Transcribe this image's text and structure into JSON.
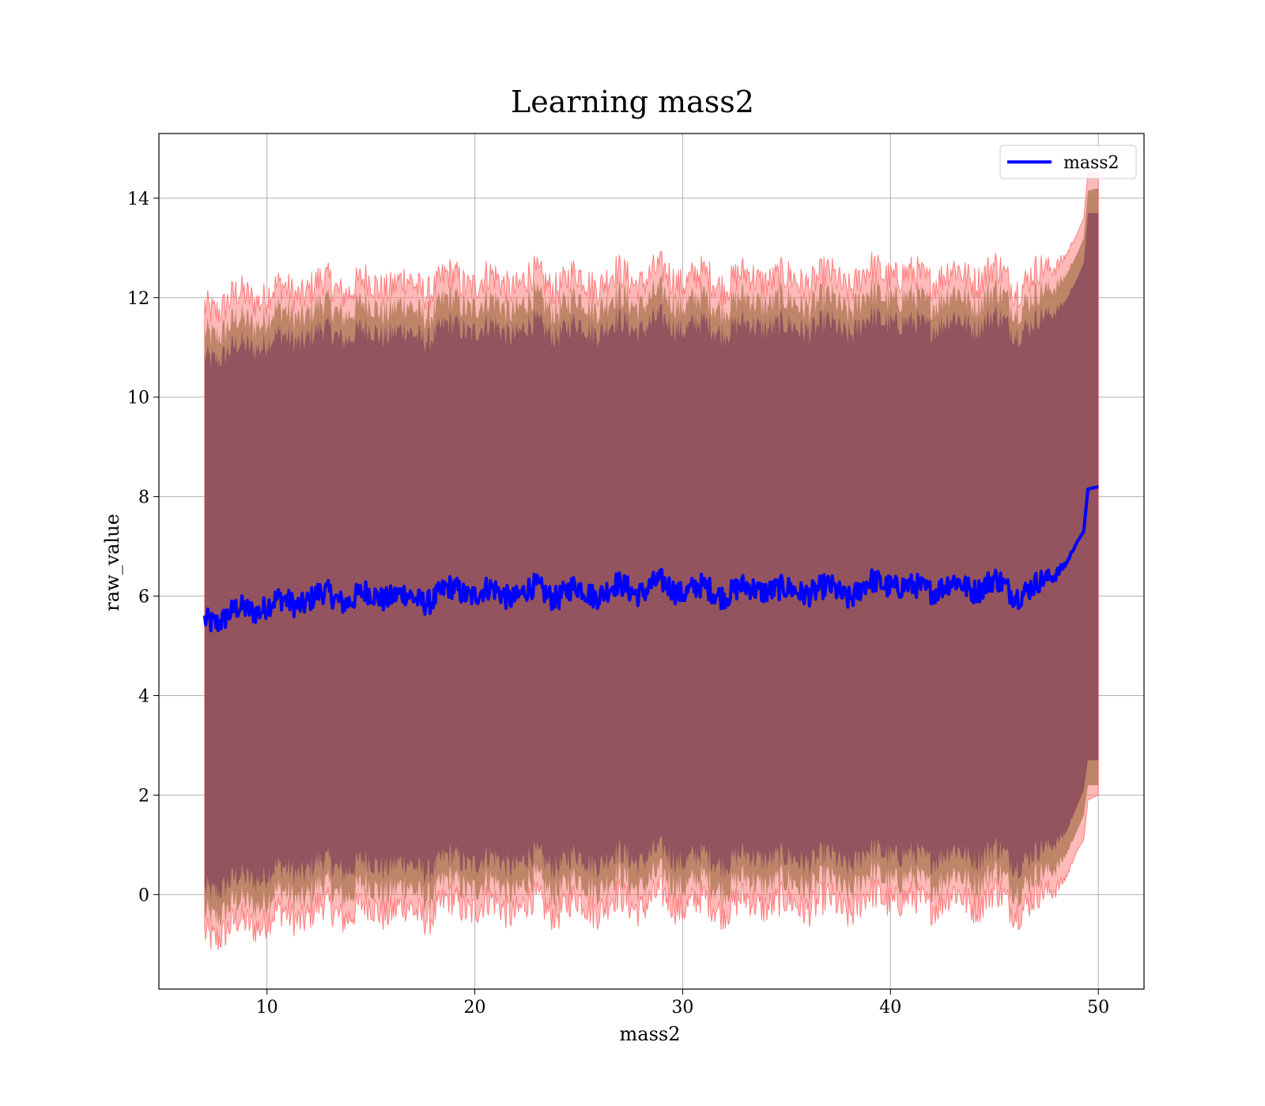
{
  "chart_data": {
    "type": "line",
    "title": "Learning mass2",
    "xlabel": "mass2",
    "ylabel": "raw_value",
    "xlim": [
      4.8,
      52.2
    ],
    "ylim": [
      -1.9,
      15.3
    ],
    "xticks": [
      10,
      20,
      30,
      40,
      50
    ],
    "yticks": [
      0,
      2,
      4,
      6,
      8,
      10,
      12,
      14
    ],
    "grid": true,
    "legend": {
      "placement": "top-right",
      "entries": [
        "mass2"
      ]
    },
    "colors": {
      "mean_line": "#0000ff",
      "outer_band": "#ff7f7f",
      "middle_band": "#a9744f",
      "inner_band": "#8b4a5e"
    },
    "series": [
      {
        "name": "mass2",
        "x": [
          7,
          8,
          9,
          10,
          11,
          12,
          13,
          14,
          15,
          16,
          17,
          18,
          19,
          20,
          21,
          22,
          23,
          24,
          25,
          26,
          27,
          28,
          29,
          30,
          31,
          32,
          33,
          34,
          35,
          36,
          37,
          38,
          39,
          40,
          41,
          42,
          43,
          44,
          45,
          46,
          47,
          48,
          48.5,
          49,
          49.3,
          49.5,
          50
        ],
        "y": [
          5.5,
          5.6,
          5.7,
          5.85,
          5.85,
          5.95,
          6.0,
          5.95,
          6.0,
          6.05,
          5.9,
          6.0,
          6.1,
          6.1,
          6.05,
          6.05,
          6.1,
          6.05,
          6.1,
          6.1,
          6.15,
          6.15,
          6.2,
          6.15,
          6.1,
          6.1,
          6.1,
          6.2,
          6.05,
          6.15,
          6.1,
          6.05,
          6.2,
          6.3,
          6.1,
          6.2,
          6.2,
          6.2,
          6.25,
          6.1,
          6.15,
          6.5,
          6.7,
          7.1,
          7.3,
          8.15,
          8.2
        ]
      }
    ],
    "bands": {
      "x": [
        7,
        8,
        9,
        10,
        11,
        12,
        13,
        14,
        15,
        16,
        17,
        18,
        19,
        20,
        21,
        22,
        23,
        24,
        25,
        26,
        27,
        28,
        29,
        30,
        31,
        32,
        33,
        34,
        35,
        36,
        37,
        38,
        39,
        40,
        41,
        42,
        43,
        44,
        45,
        46,
        47,
        48,
        48.5,
        49,
        49.3,
        49.5,
        50
      ],
      "outer_upper": [
        11.8,
        11.9,
        12.0,
        12.1,
        12.1,
        12.2,
        12.25,
        12.2,
        12.25,
        12.3,
        12.2,
        12.25,
        12.35,
        12.35,
        12.3,
        12.3,
        12.35,
        12.3,
        12.35,
        12.35,
        12.4,
        12.4,
        12.45,
        12.4,
        12.35,
        12.35,
        12.35,
        12.45,
        12.3,
        12.4,
        12.35,
        12.3,
        12.45,
        12.55,
        12.35,
        12.45,
        12.45,
        12.45,
        12.5,
        12.3,
        12.4,
        12.7,
        12.9,
        13.3,
        13.6,
        14.5,
        14.5
      ],
      "outer_lower": [
        -0.8,
        -0.7,
        -0.6,
        -0.45,
        -0.45,
        -0.35,
        -0.3,
        -0.35,
        -0.3,
        -0.25,
        -0.4,
        -0.3,
        -0.2,
        -0.2,
        -0.25,
        -0.25,
        -0.2,
        -0.25,
        -0.2,
        -0.2,
        -0.15,
        -0.15,
        -0.1,
        -0.15,
        -0.2,
        -0.2,
        -0.2,
        -0.1,
        -0.25,
        -0.15,
        -0.2,
        -0.25,
        -0.1,
        0.0,
        -0.2,
        -0.1,
        -0.1,
        -0.1,
        -0.05,
        -0.2,
        -0.15,
        0.2,
        0.4,
        0.9,
        1.1,
        1.9,
        2.0
      ],
      "middle_upper": [
        11.3,
        11.4,
        11.5,
        11.65,
        11.65,
        11.75,
        11.8,
        11.75,
        11.8,
        11.85,
        11.7,
        11.8,
        11.9,
        11.9,
        11.85,
        11.85,
        11.9,
        11.85,
        11.9,
        11.9,
        11.95,
        11.95,
        12.0,
        11.95,
        11.9,
        11.9,
        11.9,
        12.0,
        11.85,
        11.95,
        11.9,
        11.85,
        12.0,
        12.1,
        11.9,
        12.0,
        12.0,
        12.0,
        12.05,
        11.9,
        11.95,
        12.3,
        12.5,
        12.9,
        13.2,
        14.15,
        14.2
      ],
      "middle_lower": [
        -0.4,
        -0.3,
        -0.2,
        -0.05,
        -0.05,
        0.05,
        0.1,
        0.05,
        0.1,
        0.15,
        0.0,
        0.1,
        0.2,
        0.2,
        0.15,
        0.15,
        0.2,
        0.15,
        0.2,
        0.2,
        0.25,
        0.25,
        0.3,
        0.25,
        0.2,
        0.2,
        0.2,
        0.3,
        0.15,
        0.25,
        0.2,
        0.15,
        0.3,
        0.4,
        0.2,
        0.3,
        0.3,
        0.3,
        0.35,
        0.2,
        0.25,
        0.6,
        0.85,
        1.3,
        1.6,
        2.2,
        2.2
      ],
      "inner_upper": [
        10.8,
        10.9,
        11.0,
        11.15,
        11.15,
        11.25,
        11.3,
        11.25,
        11.3,
        11.35,
        11.2,
        11.3,
        11.4,
        11.4,
        11.35,
        11.35,
        11.4,
        11.35,
        11.4,
        11.4,
        11.45,
        11.45,
        11.5,
        11.45,
        11.4,
        11.4,
        11.4,
        11.5,
        11.35,
        11.45,
        11.4,
        11.35,
        11.5,
        11.6,
        11.4,
        11.5,
        11.5,
        11.5,
        11.55,
        11.4,
        11.45,
        11.8,
        12.0,
        12.4,
        12.7,
        13.7,
        13.7
      ],
      "inner_lower": [
        0.1,
        0.2,
        0.3,
        0.45,
        0.45,
        0.55,
        0.6,
        0.55,
        0.6,
        0.65,
        0.5,
        0.6,
        0.7,
        0.7,
        0.65,
        0.65,
        0.7,
        0.65,
        0.7,
        0.7,
        0.75,
        0.75,
        0.8,
        0.75,
        0.7,
        0.7,
        0.7,
        0.8,
        0.65,
        0.75,
        0.7,
        0.65,
        0.8,
        0.9,
        0.7,
        0.8,
        0.8,
        0.8,
        0.85,
        0.7,
        0.75,
        1.1,
        1.3,
        1.8,
        2.1,
        2.7,
        2.7
      ]
    }
  }
}
